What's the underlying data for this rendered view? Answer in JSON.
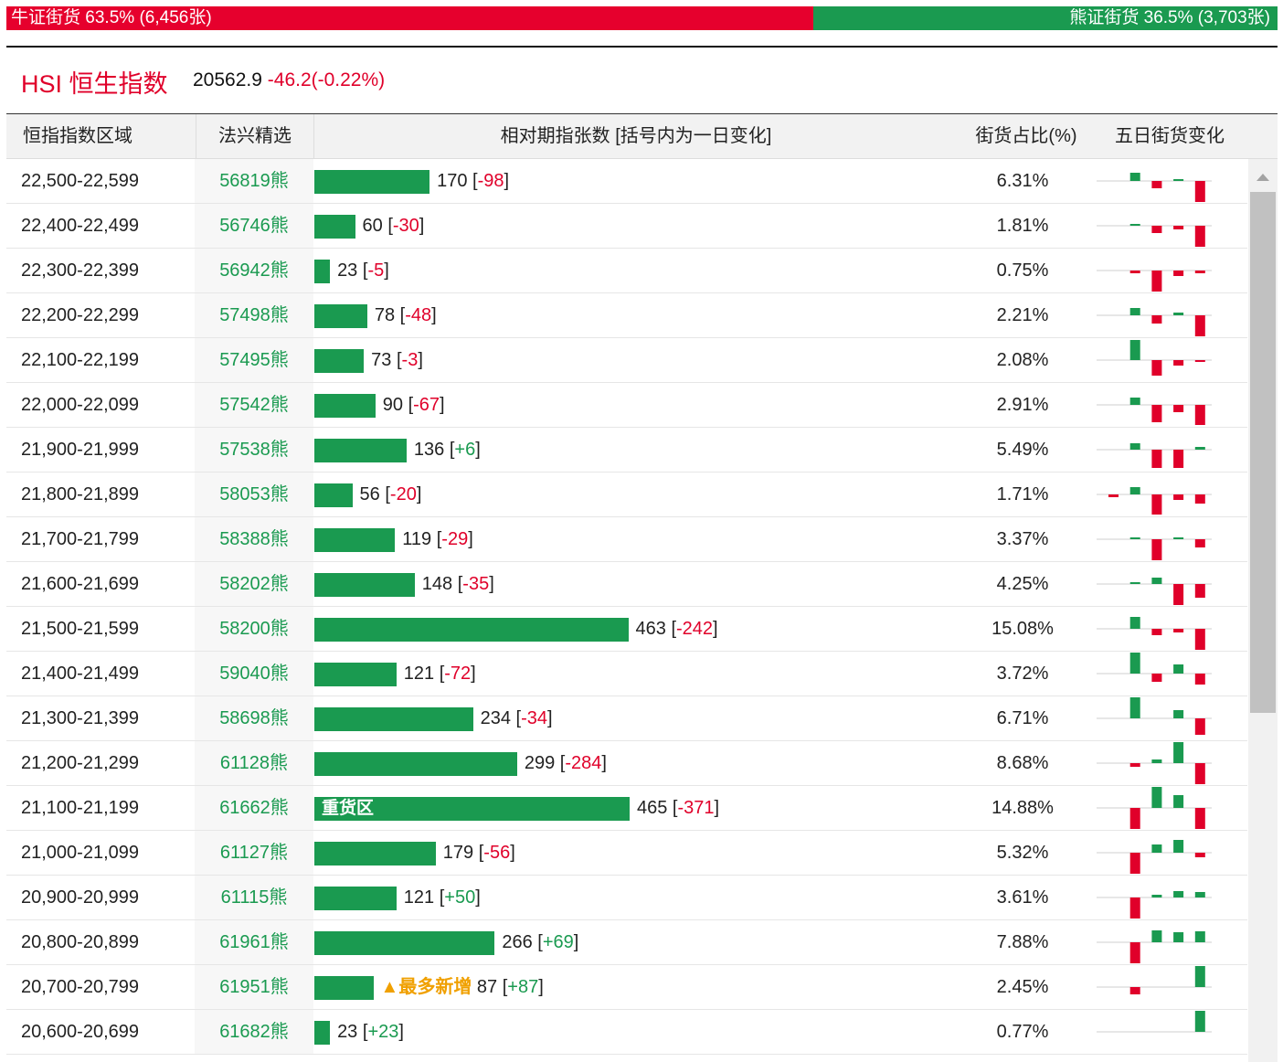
{
  "top_bar": {
    "bull": {
      "name": "牛证街货",
      "pct": {
        "value": 63.5,
        "label": "63.5%"
      },
      "count": "(6,456张)"
    },
    "bear": {
      "name": "熊证街货",
      "pct": {
        "value": 36.5,
        "label": "36.5%"
      },
      "count": "(3,703张)"
    }
  },
  "header": {
    "symbol": "HSI",
    "name": "恒生指数",
    "price": "20562.9",
    "change": "-46.2(-0.22%)"
  },
  "table": {
    "columns": [
      "恒指指数区域",
      "法兴精选",
      "相对期指张数 [括号内为一日变化]",
      "街货占比(%)",
      "五日街货变化"
    ],
    "rows": [
      {
        "range": "22,500-22,599",
        "code": "56819熊",
        "count": 170,
        "change": "-98",
        "share": "6.31%",
        "five_day": [
          0,
          9,
          -8,
          2,
          -23
        ]
      },
      {
        "range": "22,400-22,499",
        "code": "56746熊",
        "count": 60,
        "change": "-30",
        "share": "1.81%",
        "five_day": [
          0,
          2,
          -8,
          -4,
          -23
        ]
      },
      {
        "range": "22,300-22,399",
        "code": "56942熊",
        "count": 23,
        "change": "-5",
        "share": "0.75%",
        "five_day": [
          0,
          -3,
          -23,
          -6,
          -3
        ]
      },
      {
        "range": "22,200-22,299",
        "code": "57498熊",
        "count": 78,
        "change": "-48",
        "share": "2.21%",
        "five_day": [
          0,
          8,
          -9,
          3,
          -23
        ]
      },
      {
        "range": "22,100-22,199",
        "code": "57495熊",
        "count": 73,
        "change": "-3",
        "share": "2.08%",
        "five_day": [
          0,
          22,
          -17,
          -6,
          -2
        ]
      },
      {
        "range": "22,000-22,099",
        "code": "57542熊",
        "count": 90,
        "change": "-67",
        "share": "2.91%",
        "five_day": [
          0,
          8,
          -19,
          -8,
          -22
        ]
      },
      {
        "range": "21,900-21,999",
        "code": "57538熊",
        "count": 136,
        "change": "+6",
        "share": "5.49%",
        "five_day": [
          0,
          7,
          -20,
          -20,
          3
        ]
      },
      {
        "range": "21,800-21,899",
        "code": "58053熊",
        "count": 56,
        "change": "-20",
        "share": "1.71%",
        "five_day": [
          -3,
          8,
          -22,
          -6,
          -10
        ]
      },
      {
        "range": "21,700-21,799",
        "code": "58388熊",
        "count": 119,
        "change": "-29",
        "share": "3.37%",
        "five_day": [
          0,
          2,
          -23,
          2,
          -9
        ]
      },
      {
        "range": "21,600-21,699",
        "code": "58202熊",
        "count": 148,
        "change": "-35",
        "share": "4.25%",
        "five_day": [
          0,
          2,
          7,
          -23,
          -15
        ]
      },
      {
        "range": "21,500-21,599",
        "code": "58200熊",
        "count": 463,
        "change": "-242",
        "share": "15.08%",
        "five_day": [
          0,
          13,
          -7,
          -4,
          -23
        ]
      },
      {
        "range": "21,400-21,499",
        "code": "59040熊",
        "count": 121,
        "change": "-72",
        "share": "3.72%",
        "five_day": [
          0,
          23,
          -9,
          10,
          -12
        ]
      },
      {
        "range": "21,300-21,399",
        "code": "58698熊",
        "count": 234,
        "change": "-34",
        "share": "6.71%",
        "five_day": [
          0,
          23,
          0,
          9,
          -18
        ]
      },
      {
        "range": "21,200-21,299",
        "code": "61128熊",
        "count": 299,
        "change": "-284",
        "share": "8.68%",
        "five_day": [
          0,
          -4,
          4,
          23,
          -23
        ]
      },
      {
        "range": "21,100-21,199",
        "code": "61662熊",
        "count": 465,
        "change": "-371",
        "share": "14.88%",
        "five_day": [
          0,
          -23,
          23,
          14,
          -23
        ],
        "tag": "重货区",
        "tag_position": "inside"
      },
      {
        "range": "21,000-21,099",
        "code": "61127熊",
        "count": 179,
        "change": "-56",
        "share": "5.32%",
        "five_day": [
          0,
          -23,
          9,
          14,
          -5
        ]
      },
      {
        "range": "20,900-20,999",
        "code": "61115熊",
        "count": 121,
        "change": "+50",
        "share": "3.61%",
        "five_day": [
          0,
          -23,
          3,
          7,
          6
        ]
      },
      {
        "range": "20,800-20,899",
        "code": "61961熊",
        "count": 266,
        "change": "+69",
        "share": "7.88%",
        "five_day": [
          0,
          -23,
          13,
          11,
          12
        ]
      },
      {
        "range": "20,700-20,799",
        "code": "61951熊",
        "count": 87,
        "change": "+87",
        "share": "2.45%",
        "five_day": [
          0,
          -8,
          0,
          0,
          23
        ],
        "tag": "▲最多新增",
        "tag_position": "outside"
      },
      {
        "range": "20,600-20,699",
        "code": "61682熊",
        "count": 23,
        "change": "+23",
        "share": "0.77%",
        "five_day": [
          0,
          0,
          0,
          0,
          23
        ]
      }
    ]
  }
}
